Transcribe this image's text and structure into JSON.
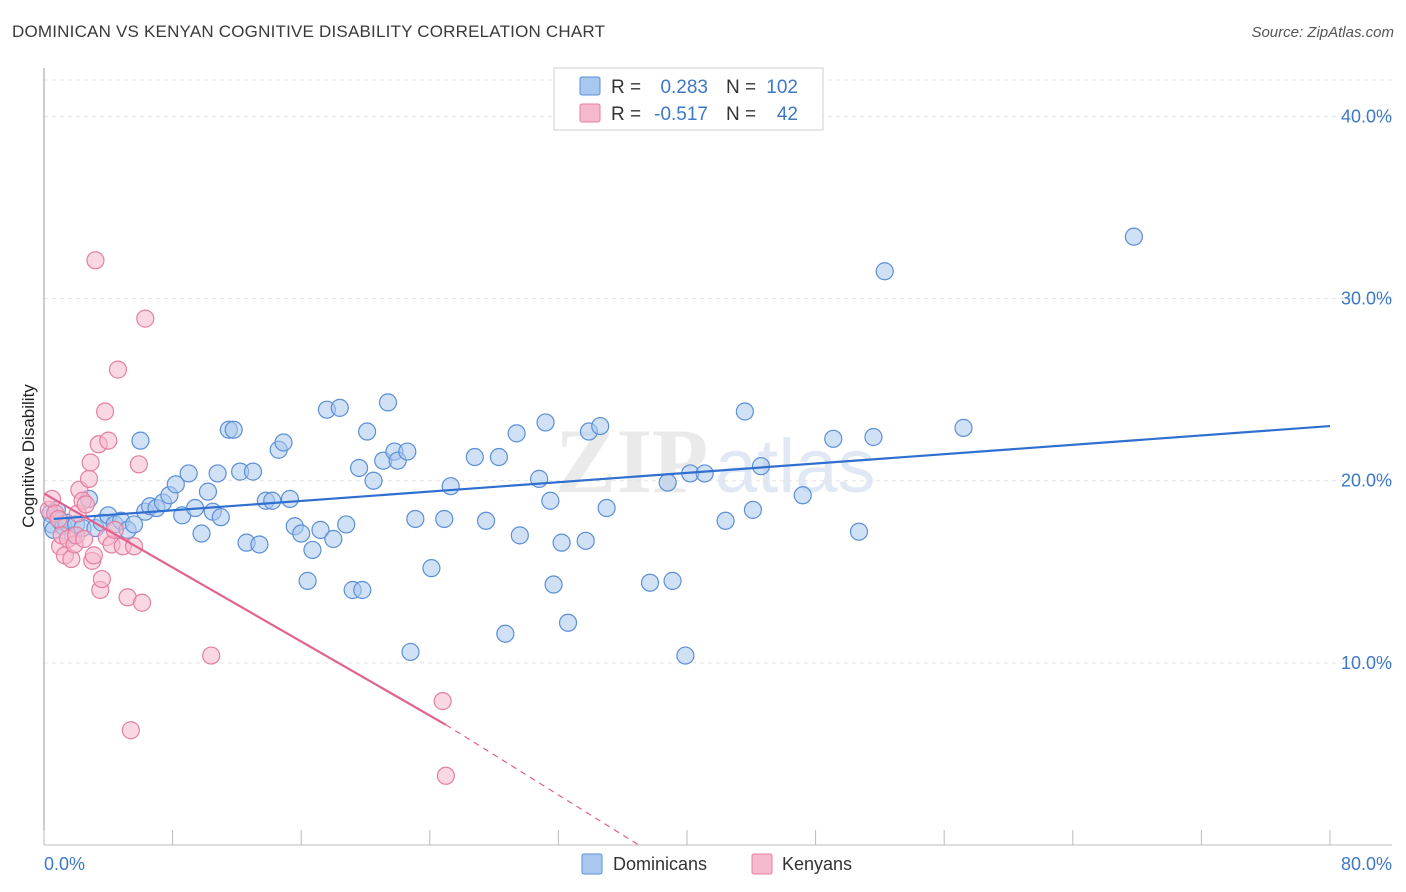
{
  "header": {
    "title": "DOMINICAN VS KENYAN COGNITIVE DISABILITY CORRELATION CHART",
    "source": "Source: ZipAtlas.com"
  },
  "watermark": {
    "zip": "ZIP",
    "atlas": "atlas"
  },
  "legend": {
    "rows": [
      {
        "r_label": "R =",
        "r_value": "0.283",
        "n_label": "N =",
        "n_value": "102"
      },
      {
        "r_label": "R =",
        "r_value": "-0.517",
        "n_label": "N =",
        "n_value": "42"
      }
    ]
  },
  "bottom_legend": {
    "items": [
      "Dominicans",
      "Kenyans"
    ]
  },
  "colors": {
    "dominicans_fill": "#a9c8ef",
    "dominicans_stroke": "#5b8fd6",
    "dominicans_line": "#2f6fcf",
    "kenyans_fill": "#f6b8cc",
    "kenyans_stroke": "#e47fa0",
    "kenyans_line": "#e0628f",
    "tick_label": "#3c78c8"
  },
  "chart_data": {
    "type": "scatter",
    "title": "DOMINICAN VS KENYAN COGNITIVE DISABILITY CORRELATION CHART",
    "xlabel": "",
    "ylabel": "Cognitive Disability",
    "xlim": [
      0,
      80
    ],
    "ylim": [
      0,
      42
    ],
    "x_tick_labels": [
      "0.0%",
      "80.0%"
    ],
    "y_ticks": [
      10,
      20,
      30,
      40
    ],
    "y_tick_labels": [
      "10.0%",
      "20.0%",
      "30.0%",
      "40.0%"
    ],
    "grid": true,
    "legend_position": "top-center",
    "series": [
      {
        "name": "Dominicans",
        "r": 0.283,
        "n": 102,
        "trend": {
          "x": [
            0.6,
            80.0
          ],
          "y": [
            17.9,
            23.0
          ]
        },
        "points": [
          [
            0.4,
            18.2
          ],
          [
            0.5,
            17.6
          ],
          [
            0.6,
            17.3
          ],
          [
            0.8,
            18.4
          ],
          [
            1.0,
            17.8
          ],
          [
            1.2,
            17.5
          ],
          [
            1.4,
            17.7
          ],
          [
            1.8,
            17.0
          ],
          [
            2.0,
            17.6
          ],
          [
            2.4,
            17.4
          ],
          [
            2.8,
            19.0
          ],
          [
            3.2,
            17.4
          ],
          [
            3.6,
            17.7
          ],
          [
            4.0,
            18.1
          ],
          [
            4.4,
            17.6
          ],
          [
            4.8,
            17.8
          ],
          [
            5.2,
            17.3
          ],
          [
            5.6,
            17.6
          ],
          [
            6.0,
            22.2
          ],
          [
            6.3,
            18.3
          ],
          [
            6.6,
            18.6
          ],
          [
            7.0,
            18.5
          ],
          [
            7.4,
            18.8
          ],
          [
            7.8,
            19.2
          ],
          [
            8.2,
            19.8
          ],
          [
            8.6,
            18.1
          ],
          [
            9.0,
            20.4
          ],
          [
            9.4,
            18.5
          ],
          [
            9.8,
            17.1
          ],
          [
            10.2,
            19.4
          ],
          [
            10.5,
            18.3
          ],
          [
            10.8,
            20.4
          ],
          [
            11.0,
            18.0
          ],
          [
            11.5,
            22.8
          ],
          [
            11.8,
            22.8
          ],
          [
            12.2,
            20.5
          ],
          [
            12.6,
            16.6
          ],
          [
            13.0,
            20.5
          ],
          [
            13.4,
            16.5
          ],
          [
            13.8,
            18.9
          ],
          [
            14.2,
            18.9
          ],
          [
            14.6,
            21.7
          ],
          [
            14.9,
            22.1
          ],
          [
            15.3,
            19.0
          ],
          [
            15.6,
            17.5
          ],
          [
            16.0,
            17.1
          ],
          [
            16.4,
            14.5
          ],
          [
            16.7,
            16.2
          ],
          [
            17.2,
            17.3
          ],
          [
            17.6,
            23.9
          ],
          [
            18.0,
            16.8
          ],
          [
            18.4,
            24.0
          ],
          [
            18.8,
            17.6
          ],
          [
            19.2,
            14.0
          ],
          [
            19.6,
            20.7
          ],
          [
            19.8,
            14.0
          ],
          [
            20.1,
            22.7
          ],
          [
            20.5,
            20.0
          ],
          [
            21.1,
            21.1
          ],
          [
            21.4,
            24.3
          ],
          [
            21.8,
            21.6
          ],
          [
            22.0,
            21.1
          ],
          [
            22.6,
            21.6
          ],
          [
            22.8,
            10.6
          ],
          [
            23.1,
            17.9
          ],
          [
            24.1,
            15.2
          ],
          [
            24.9,
            17.9
          ],
          [
            25.3,
            19.7
          ],
          [
            26.8,
            21.3
          ],
          [
            27.5,
            17.8
          ],
          [
            28.3,
            21.3
          ],
          [
            28.7,
            11.6
          ],
          [
            29.4,
            22.6
          ],
          [
            29.6,
            17.0
          ],
          [
            30.8,
            20.1
          ],
          [
            31.2,
            23.2
          ],
          [
            31.5,
            18.9
          ],
          [
            31.7,
            14.3
          ],
          [
            32.2,
            16.6
          ],
          [
            32.6,
            12.2
          ],
          [
            33.7,
            16.7
          ],
          [
            33.9,
            22.7
          ],
          [
            34.6,
            23.0
          ],
          [
            35.0,
            18.5
          ],
          [
            37.7,
            14.4
          ],
          [
            38.8,
            19.9
          ],
          [
            39.1,
            14.5
          ],
          [
            39.9,
            10.4
          ],
          [
            40.2,
            20.4
          ],
          [
            41.1,
            20.4
          ],
          [
            42.4,
            17.8
          ],
          [
            43.6,
            23.8
          ],
          [
            44.1,
            18.4
          ],
          [
            44.6,
            20.8
          ],
          [
            47.2,
            19.2
          ],
          [
            49.1,
            22.3
          ],
          [
            50.7,
            17.2
          ],
          [
            51.6,
            22.4
          ],
          [
            52.3,
            31.5
          ],
          [
            57.2,
            22.9
          ],
          [
            67.8,
            33.4
          ]
        ]
      },
      {
        "name": "Kenyans",
        "r": -0.517,
        "n": 42,
        "trend": {
          "x": [
            0.0,
            25.0
          ],
          "y": [
            19.3,
            6.6
          ]
        },
        "trend_dashed": {
          "x": [
            25.0,
            37.0
          ],
          "y": [
            6.6,
            0.0
          ]
        },
        "points": [
          [
            0.3,
            18.4
          ],
          [
            0.5,
            19.0
          ],
          [
            0.7,
            18.2
          ],
          [
            0.9,
            17.9
          ],
          [
            1.0,
            16.4
          ],
          [
            1.1,
            17.0
          ],
          [
            1.3,
            15.9
          ],
          [
            1.5,
            16.8
          ],
          [
            1.7,
            15.7
          ],
          [
            1.9,
            16.5
          ],
          [
            2.0,
            17.0
          ],
          [
            2.1,
            18.2
          ],
          [
            2.2,
            19.5
          ],
          [
            2.4,
            18.9
          ],
          [
            2.5,
            16.8
          ],
          [
            2.6,
            18.7
          ],
          [
            2.8,
            20.1
          ],
          [
            2.9,
            21.0
          ],
          [
            3.0,
            15.6
          ],
          [
            3.1,
            15.9
          ],
          [
            3.2,
            32.1
          ],
          [
            3.4,
            22.0
          ],
          [
            3.5,
            14.0
          ],
          [
            3.6,
            14.6
          ],
          [
            3.8,
            23.8
          ],
          [
            3.9,
            16.9
          ],
          [
            4.0,
            22.2
          ],
          [
            4.2,
            16.5
          ],
          [
            4.4,
            17.3
          ],
          [
            4.6,
            26.1
          ],
          [
            4.9,
            16.4
          ],
          [
            5.2,
            13.6
          ],
          [
            5.4,
            6.3
          ],
          [
            5.6,
            16.4
          ],
          [
            5.9,
            20.9
          ],
          [
            6.1,
            13.3
          ],
          [
            6.3,
            28.9
          ],
          [
            10.4,
            10.4
          ],
          [
            24.8,
            7.9
          ],
          [
            25.0,
            3.8
          ]
        ]
      }
    ]
  }
}
